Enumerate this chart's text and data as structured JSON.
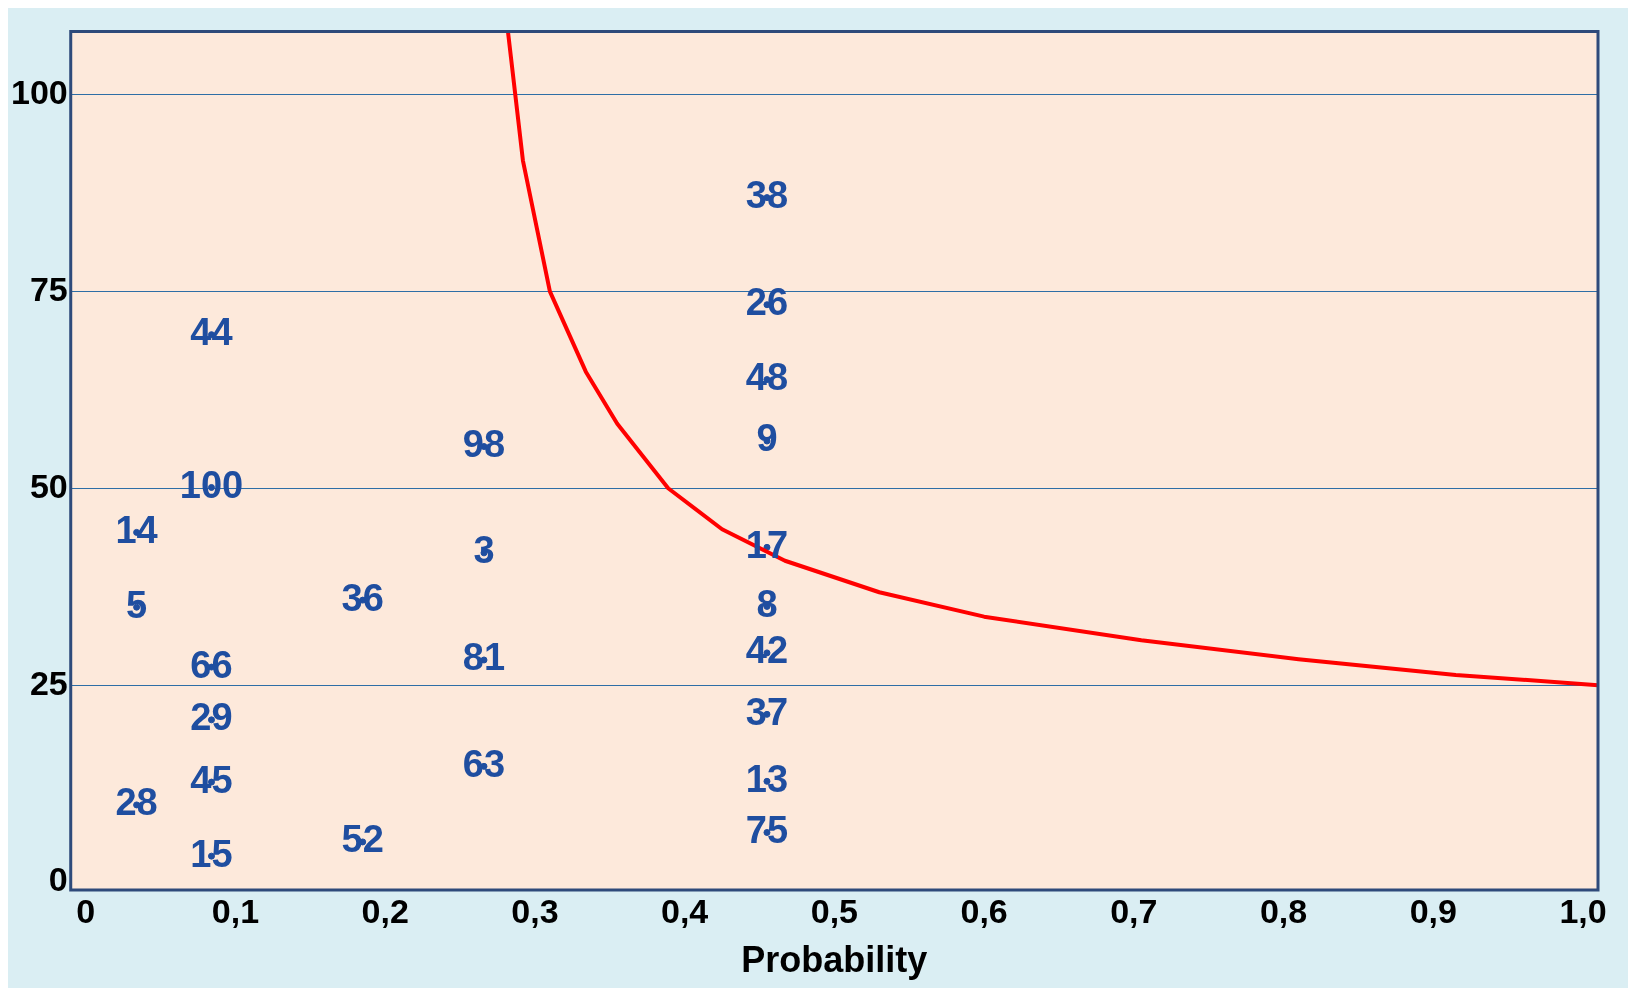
{
  "chart_data": {
    "type": "scatter",
    "xlabel": "Probability",
    "xlim": [
      -0.01,
      1.01
    ],
    "ylim": [
      -1,
      108
    ],
    "xticks": [
      0,
      {
        "value": 0.1,
        "label": "0,1"
      },
      {
        "value": 0.2,
        "label": "0,2"
      },
      {
        "value": 0.3,
        "label": "0,3"
      },
      {
        "value": 0.4,
        "label": "0,4"
      },
      {
        "value": 0.5,
        "label": "0,5"
      },
      {
        "value": 0.6,
        "label": "0,6"
      },
      {
        "value": 0.7,
        "label": "0,7"
      },
      {
        "value": 0.8,
        "label": "0,8"
      },
      {
        "value": 0.9,
        "label": "0,9"
      },
      {
        "value": 1.0,
        "label": "1,0"
      }
    ],
    "yticks": [
      0,
      25,
      50,
      75,
      100
    ],
    "grid": "y",
    "marker": "circle",
    "legend": false,
    "series": [
      {
        "type": "line",
        "color": "#ff0000",
        "line_style": "solid",
        "marker": "none",
        "x": [
          0.282,
          0.292,
          0.31,
          0.334,
          0.355,
          0.389,
          0.425,
          0.467,
          0.53,
          0.6,
          0.705,
          0.81,
          0.915,
          1.01
        ],
        "values": [
          108,
          91.6,
          75,
          64.8,
          58.2,
          50,
          44.8,
          40.8,
          36.8,
          33.7,
          30.7,
          28.3,
          26.3,
          25
        ]
      },
      {
        "name": "44",
        "color": "#1f4ea0",
        "x": [
          0.084
        ],
        "values": [
          69.5
        ]
      },
      {
        "name": "100",
        "color": "#1f4ea0",
        "x": [
          0.084
        ],
        "values": [
          50.1
        ]
      },
      {
        "name": "14",
        "color": "#1f4ea0",
        "x": [
          0.034
        ],
        "values": [
          44.4
        ]
      },
      {
        "name": "5",
        "color": "#1f4ea0",
        "x": [
          0.034
        ],
        "values": [
          34.9
        ]
      },
      {
        "name": "66",
        "color": "#1f4ea0",
        "x": [
          0.084
        ],
        "values": [
          27.3
        ]
      },
      {
        "name": "29",
        "color": "#1f4ea0",
        "x": [
          0.084
        ],
        "values": [
          20.6
        ]
      },
      {
        "name": "45",
        "color": "#1f4ea0",
        "x": [
          0.084
        ],
        "values": [
          12.7
        ]
      },
      {
        "name": "28",
        "color": "#1f4ea0",
        "x": [
          0.034
        ],
        "values": [
          9.8
        ]
      },
      {
        "name": "15",
        "color": "#1f4ea0",
        "x": [
          0.084
        ],
        "values": [
          3.3
        ]
      },
      {
        "name": "36",
        "color": "#1f4ea0",
        "x": [
          0.185
        ],
        "values": [
          35.8
        ]
      },
      {
        "name": "52",
        "color": "#1f4ea0",
        "x": [
          0.185
        ],
        "values": [
          5.1
        ]
      },
      {
        "name": "98",
        "color": "#1f4ea0",
        "x": [
          0.266
        ],
        "values": [
          55.3
        ]
      },
      {
        "name": "3",
        "color": "#1f4ea0",
        "x": [
          0.266
        ],
        "values": [
          41.8
        ]
      },
      {
        "name": "81",
        "color": "#1f4ea0",
        "x": [
          0.266
        ],
        "values": [
          28.2
        ]
      },
      {
        "name": "63",
        "color": "#1f4ea0",
        "x": [
          0.266
        ],
        "values": [
          14.7
        ]
      },
      {
        "name": "38",
        "color": "#1f4ea0",
        "x": [
          0.455
        ],
        "values": [
          86.9
        ]
      },
      {
        "name": "26",
        "color": "#1f4ea0",
        "x": [
          0.455
        ],
        "values": [
          73.3
        ]
      },
      {
        "name": "48",
        "color": "#1f4ea0",
        "x": [
          0.455
        ],
        "values": [
          63.8
        ]
      },
      {
        "name": "9",
        "color": "#1f4ea0",
        "x": [
          0.455
        ],
        "values": [
          56
        ]
      },
      {
        "name": "17",
        "color": "#1f4ea0",
        "x": [
          0.455
        ],
        "values": [
          42.5
        ]
      },
      {
        "name": "8",
        "color": "#1f4ea0",
        "x": [
          0.455
        ],
        "values": [
          35
        ]
      },
      {
        "name": "42",
        "color": "#1f4ea0",
        "x": [
          0.455
        ],
        "values": [
          29.1
        ]
      },
      {
        "name": "37",
        "color": "#1f4ea0",
        "x": [
          0.455
        ],
        "values": [
          21.3
        ]
      },
      {
        "name": "13",
        "color": "#1f4ea0",
        "x": [
          0.455
        ],
        "values": [
          12.8
        ]
      },
      {
        "name": "75",
        "color": "#1f4ea0",
        "x": [
          0.455
        ],
        "values": [
          6.3
        ]
      }
    ]
  }
}
